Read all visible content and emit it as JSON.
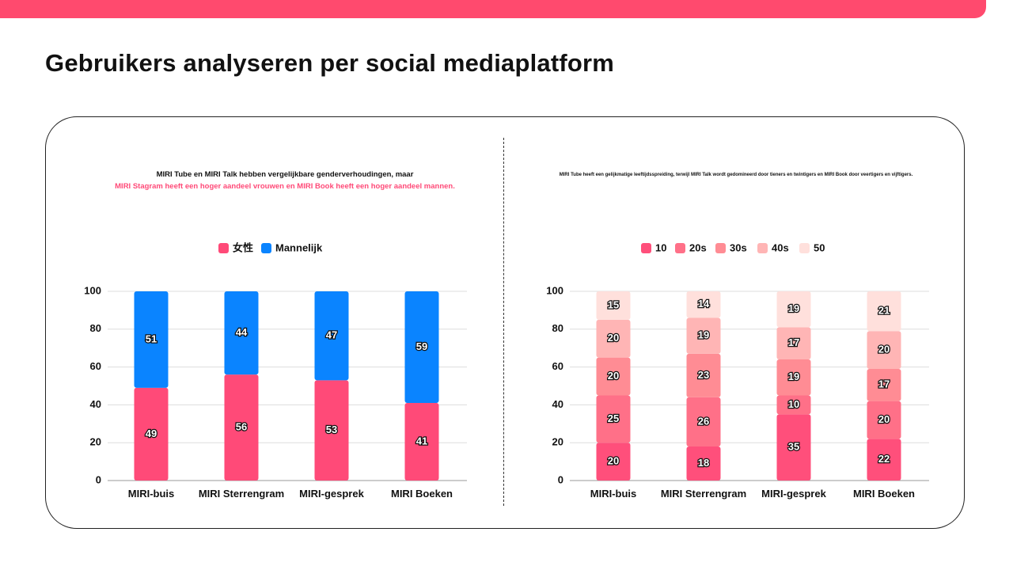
{
  "title": "Gebruikers analyseren per social mediaplatform",
  "colors": {
    "accent": "#ff4a6e"
  },
  "chart_data": [
    {
      "type": "bar",
      "stacked": true,
      "subtitle_line1": "MIRI Tube en MIRI Talk hebben vergelijkbare genderverhoudingen, maar",
      "subtitle_line2": "MIRI Stagram heeft een hoger aandeel vrouwen en MIRI Book heeft een hoger aandeel mannen.",
      "categories": [
        "MIRI-buis",
        "MIRI Sterrengram",
        "MIRI-gesprek",
        "MIRI Boeken"
      ],
      "series": [
        {
          "name": "女性",
          "color": "#ff4a78",
          "values": [
            49,
            56,
            53,
            41
          ]
        },
        {
          "name": "Mannelijk",
          "color": "#0a84ff",
          "values": [
            51,
            44,
            47,
            59
          ]
        }
      ],
      "ylim": [
        0,
        100
      ],
      "yticks": [
        0,
        20,
        40,
        60,
        80,
        100
      ],
      "grid": true,
      "legend": "top"
    },
    {
      "type": "bar",
      "stacked": true,
      "subtitle": "MIRI Tube heeft een gelijkmatige leeftijdsspreiding, terwijl MIRI Talk wordt gedomineerd door tieners en twintigers en MIRI Book door veertigers en vijftigers.",
      "categories": [
        "MIRI-buis",
        "MIRI Sterrengram",
        "MIRI-gesprek",
        "MIRI Boeken"
      ],
      "series": [
        {
          "name": "10",
          "color": "#ff4f7b",
          "values": [
            20,
            18,
            35,
            22
          ]
        },
        {
          "name": "20s",
          "color": "#ff7088",
          "values": [
            25,
            26,
            10,
            20
          ]
        },
        {
          "name": "30s",
          "color": "#ff8c94",
          "values": [
            20,
            23,
            19,
            17
          ]
        },
        {
          "name": "40s",
          "color": "#ffb5b5",
          "values": [
            20,
            19,
            17,
            20
          ]
        },
        {
          "name": "50",
          "color": "#ffe0dc",
          "values": [
            15,
            14,
            19,
            21
          ]
        }
      ],
      "ylim": [
        0,
        100
      ],
      "yticks": [
        0,
        20,
        40,
        60,
        80,
        100
      ],
      "grid": true,
      "legend": "top"
    }
  ]
}
